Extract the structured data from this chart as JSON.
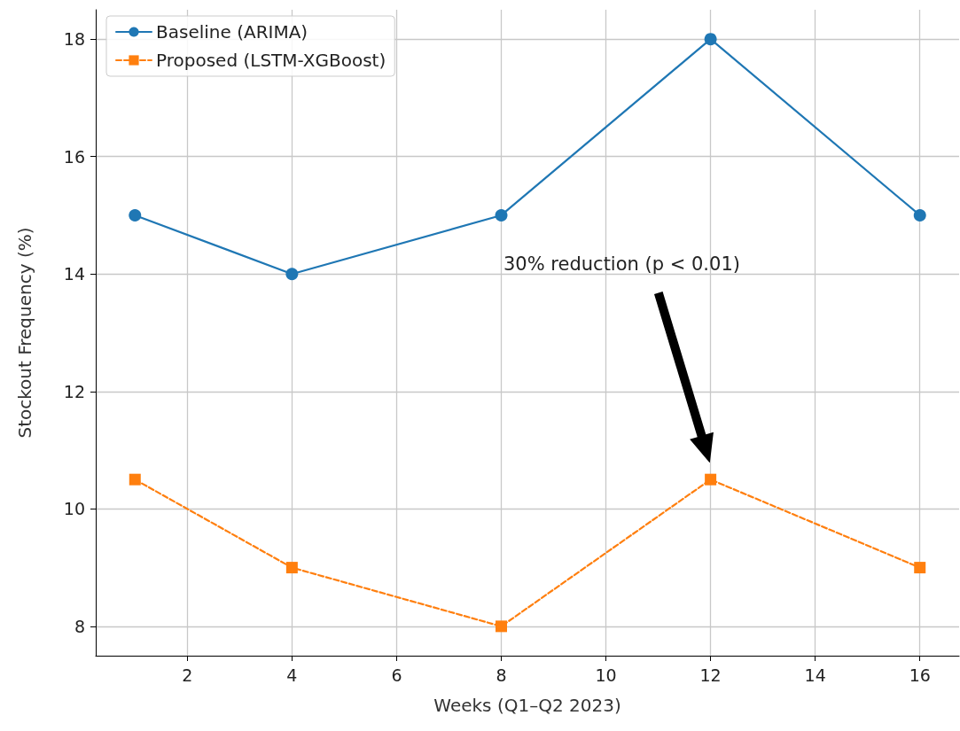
{
  "chart_data": {
    "type": "line",
    "xlabel": "Weeks (Q1–Q2 2023)",
    "ylabel": "Stockout Frequency (%)",
    "x": [
      1,
      4,
      8,
      12,
      16
    ],
    "series": [
      {
        "name": "Baseline (ARIMA)",
        "color": "#1f77b4",
        "values": [
          15,
          14,
          15,
          18,
          15
        ],
        "marker": "circle",
        "line_style": "solid"
      },
      {
        "name": "Proposed (LSTM-XGBoost)",
        "color": "#ff7f0e",
        "values": [
          10.5,
          9,
          8,
          10.5,
          9
        ],
        "marker": "square",
        "line_style": "dashed"
      }
    ],
    "xlim": [
      0.25,
      16.75
    ],
    "xticks": [
      2,
      4,
      6,
      8,
      10,
      12,
      14,
      16
    ],
    "ylim": [
      7.5,
      18.5
    ],
    "yticks": [
      8,
      10,
      12,
      14,
      16,
      18
    ],
    "grid": true,
    "legend": "top left",
    "annotations": [
      "30% reduction (p < 0.01)"
    ]
  }
}
